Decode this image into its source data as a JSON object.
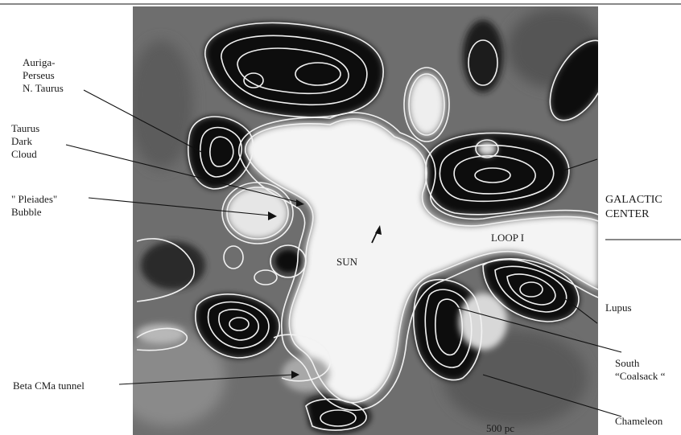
{
  "labels": {
    "auriga": "Auriga-\nPerseus\nN. Taurus",
    "taurus": "Taurus\nDark\nCloud",
    "pleiades": "\" Pleiades\"\nBubble",
    "galactic_center": "GALACTIC\nCENTER",
    "loop_i": "LOOP I",
    "sun": "SUN",
    "lupus": "Lupus",
    "south_coalsack": "South\n“Coalsack “",
    "beta_cma": "Beta CMa tunnel",
    "chameleon": "Chameleon",
    "scale": "500 pc"
  },
  "colors": {
    "background": "#ffffff",
    "cavity": "#f4f4f4",
    "dense": "#0c0c0c",
    "contour": "#f2f2f2",
    "text": "#1a1a1a"
  }
}
